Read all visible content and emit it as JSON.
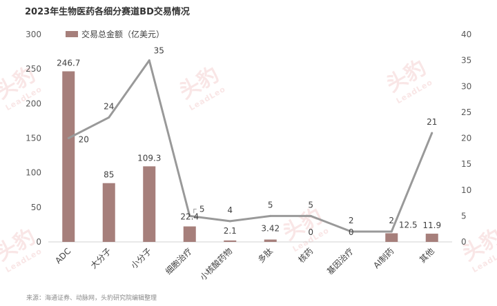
{
  "title": "2023年生物医药各细分赛道BD交易情况",
  "source": "来源：海通证券、动脉网，头豹研究院编辑整理",
  "watermark": {
    "text": "头豹",
    "sub": "LeadLeo"
  },
  "chart_data": {
    "type": "bar+line",
    "categories": [
      "ADC",
      "大分子",
      "小分子",
      "细胞治疗",
      "小核酸药物",
      "多肽",
      "核药",
      "基因治疗",
      "AI制药",
      "其他"
    ],
    "bar_series": {
      "name": "交易总金额（亿美元）",
      "values": [
        246.7,
        85,
        109.3,
        22.4,
        2.1,
        3.42,
        0,
        0,
        12.5,
        11.9
      ],
      "value_labels": [
        "246.7",
        "85",
        "109.3",
        "22.4",
        "2.1",
        "3.42",
        "0",
        "0",
        "12.5",
        "11.9"
      ],
      "color": "#a67f7b"
    },
    "line_series": {
      "values": [
        20,
        24,
        35,
        5,
        4,
        5,
        5,
        2,
        2,
        21
      ],
      "color": "#999999"
    },
    "y_left": {
      "min": 0,
      "max": 300,
      "ticks": [
        0,
        50,
        100,
        150,
        200,
        250,
        300
      ]
    },
    "y_right": {
      "min": 0,
      "max": 40,
      "ticks": [
        0,
        5,
        10,
        15,
        20,
        25,
        30,
        35,
        40
      ]
    },
    "legend_position": "top-left"
  }
}
